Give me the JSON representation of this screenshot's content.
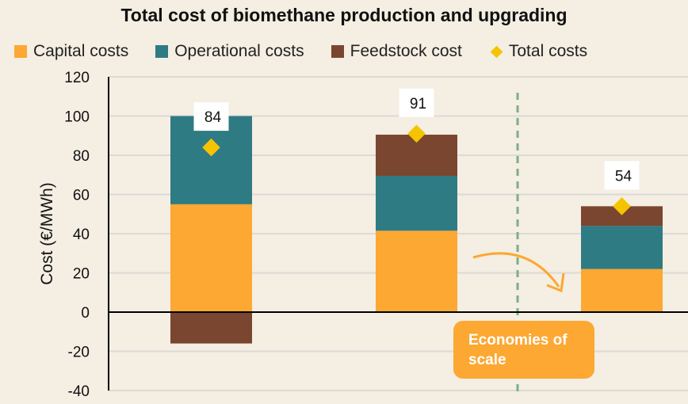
{
  "chart_data": {
    "type": "bar",
    "stacked": true,
    "title": "Total cost of biomethane production and upgrading",
    "ylabel": "Cost (€/MWh)",
    "xlabel": "",
    "ylim": [
      -40,
      120
    ],
    "yticks": [
      -40,
      -20,
      0,
      20,
      40,
      60,
      80,
      100,
      120
    ],
    "categories": [
      "",
      "",
      ""
    ],
    "series": [
      {
        "name": "Capital costs",
        "color": "#fca833",
        "values": [
          55,
          41.5,
          22
        ]
      },
      {
        "name": "Operational costs",
        "color": "#2f7b83",
        "values": [
          45,
          28,
          22
        ]
      },
      {
        "name": "Feedstock cost",
        "color": "#7b4630",
        "values": [
          -16,
          21,
          10
        ]
      }
    ],
    "totals": {
      "name": "Total costs",
      "color": "#f5c400",
      "values": [
        84,
        91,
        54
      ]
    },
    "grid": true,
    "legend_position": "top",
    "annotation": "Economies of scale"
  }
}
